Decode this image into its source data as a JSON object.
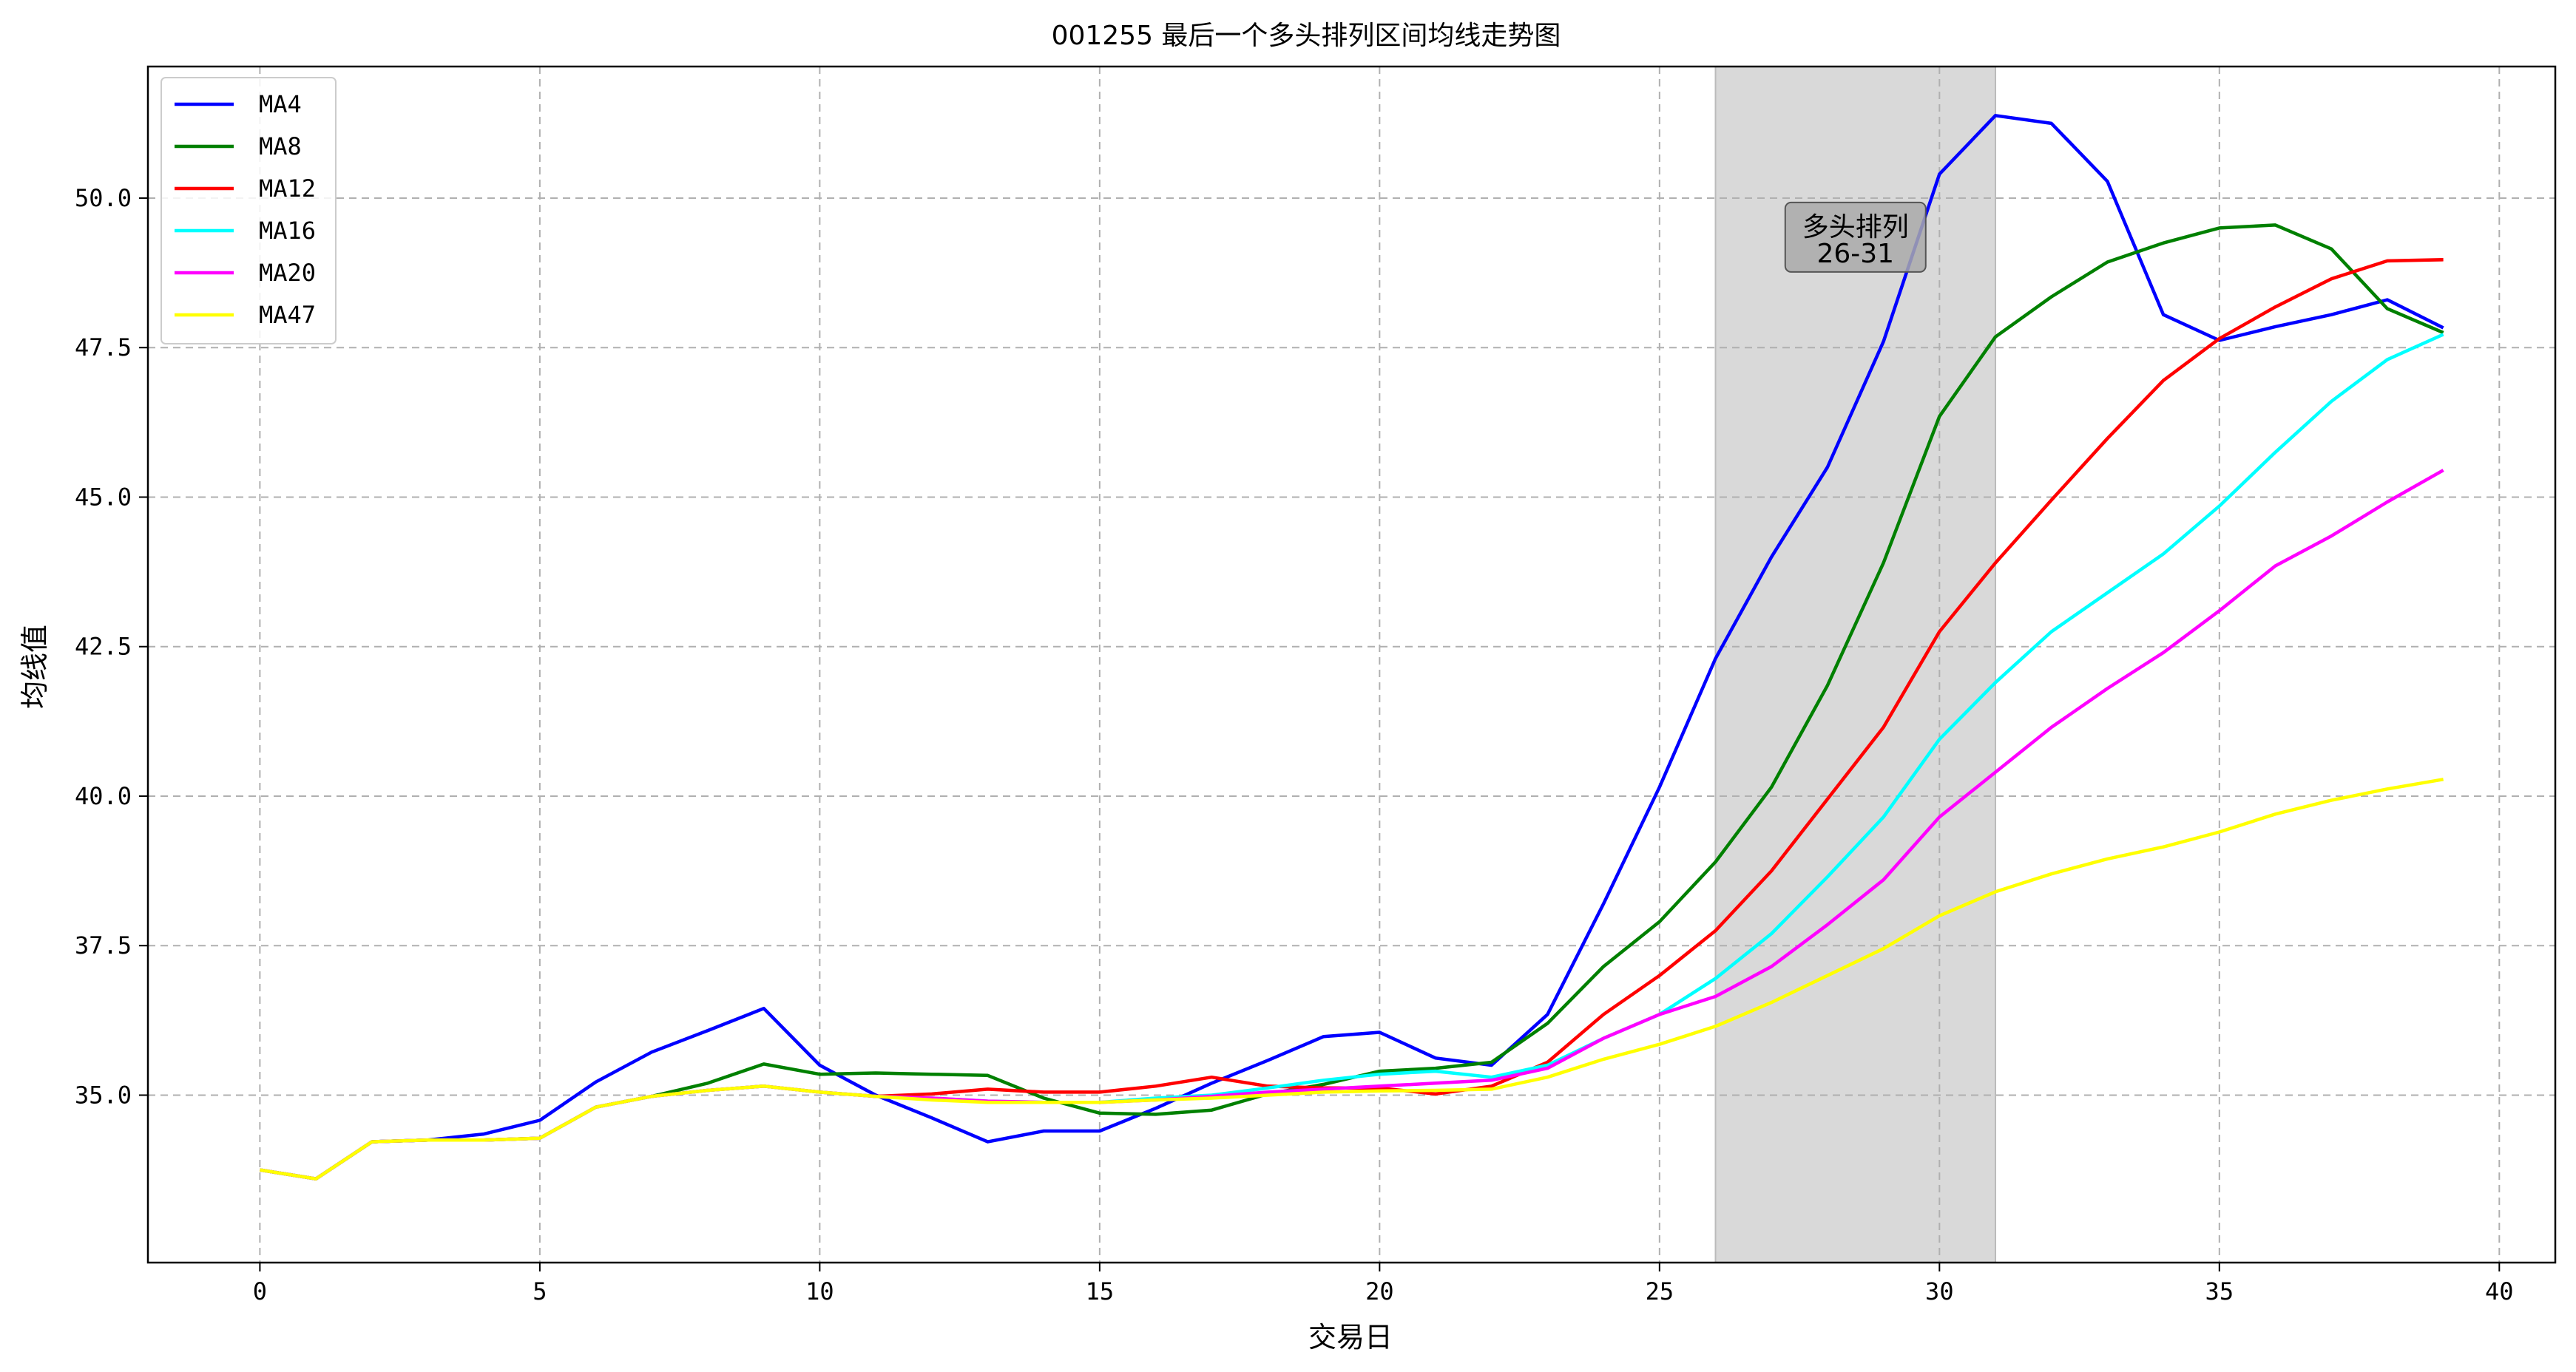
{
  "chart_data": {
    "type": "line",
    "title": "001255 最后一个多头排列区间均线走势图",
    "xlabel": "交易日",
    "ylabel": "均线值",
    "xlim": [
      -2,
      41
    ],
    "ylim": [
      32.2,
      52.2
    ],
    "xticks": [
      0,
      5,
      10,
      15,
      20,
      25,
      30,
      35,
      40
    ],
    "xtick_labels": [
      "0",
      "5",
      "10",
      "15",
      "20",
      "25",
      "30",
      "35",
      "40"
    ],
    "yticks": [
      35.0,
      37.5,
      40.0,
      42.5,
      45.0,
      47.5,
      50.0
    ],
    "ytick_labels": [
      "35.0",
      "37.5",
      "40.0",
      "42.5",
      "45.0",
      "47.5",
      "50.0"
    ],
    "grid": true,
    "legend_position": "top-left",
    "highlight_region": {
      "x_start": 26,
      "x_end": 31,
      "color": "#d9d9d9"
    },
    "annotation": {
      "line1": "多头排列",
      "line2": "26-31",
      "x": 28.5,
      "y": 49.0
    },
    "x": [
      0,
      1,
      2,
      3,
      4,
      5,
      6,
      7,
      8,
      9,
      10,
      11,
      12,
      13,
      14,
      15,
      16,
      17,
      18,
      19,
      20,
      21,
      22,
      23,
      24,
      25,
      26,
      27,
      28,
      29,
      30,
      31,
      32,
      33,
      34,
      35,
      36,
      37,
      38,
      39
    ],
    "series": [
      {
        "name": "MA4",
        "color": "#0000ff",
        "values": [
          33.75,
          33.6,
          34.22,
          34.25,
          34.35,
          34.58,
          35.22,
          35.72,
          36.08,
          36.45,
          35.5,
          35.0,
          34.62,
          34.22,
          34.4,
          34.4,
          34.78,
          35.2,
          35.58,
          35.98,
          36.05,
          35.62,
          35.5,
          36.35,
          38.2,
          40.15,
          42.3,
          44.0,
          45.5,
          47.6,
          50.4,
          51.38,
          51.25,
          50.28,
          48.05,
          47.62,
          47.85,
          48.05,
          48.3,
          47.83
        ]
      },
      {
        "name": "MA8",
        "color": "#008000",
        "values": [
          33.75,
          33.6,
          34.22,
          34.25,
          34.25,
          34.28,
          34.8,
          34.98,
          35.2,
          35.52,
          35.35,
          35.37,
          35.35,
          35.33,
          34.95,
          34.7,
          34.68,
          34.75,
          35.02,
          35.18,
          35.4,
          35.45,
          35.55,
          36.2,
          37.15,
          37.9,
          38.9,
          40.15,
          41.85,
          43.9,
          46.35,
          47.68,
          48.35,
          48.93,
          49.25,
          49.5,
          49.55,
          49.15,
          48.15,
          47.75
        ]
      },
      {
        "name": "MA12",
        "color": "#ff0000",
        "values": [
          33.75,
          33.6,
          34.22,
          34.25,
          34.25,
          34.28,
          34.8,
          34.98,
          35.08,
          35.15,
          35.05,
          34.98,
          35.02,
          35.1,
          35.05,
          35.05,
          35.15,
          35.3,
          35.15,
          35.12,
          35.12,
          35.02,
          35.15,
          35.55,
          36.35,
          37.0,
          37.75,
          38.75,
          39.95,
          41.15,
          42.75,
          43.9,
          44.95,
          45.98,
          46.95,
          47.65,
          48.18,
          48.65,
          48.95,
          48.97
        ]
      },
      {
        "name": "MA16",
        "color": "#00ffff",
        "values": [
          33.75,
          33.6,
          34.22,
          34.25,
          34.25,
          34.28,
          34.8,
          34.98,
          35.08,
          35.15,
          35.05,
          34.98,
          34.95,
          34.9,
          34.88,
          34.88,
          34.95,
          35.0,
          35.12,
          35.25,
          35.35,
          35.4,
          35.3,
          35.5,
          35.95,
          36.35,
          36.95,
          37.7,
          38.65,
          39.65,
          40.95,
          41.9,
          42.75,
          43.4,
          44.05,
          44.85,
          45.75,
          46.6,
          47.3,
          47.72
        ]
      },
      {
        "name": "MA20",
        "color": "#ff00ff",
        "values": [
          33.75,
          33.6,
          34.22,
          34.25,
          34.25,
          34.28,
          34.8,
          34.98,
          35.08,
          35.15,
          35.05,
          34.98,
          34.95,
          34.9,
          34.88,
          34.88,
          34.92,
          34.98,
          35.05,
          35.1,
          35.15,
          35.2,
          35.25,
          35.45,
          35.95,
          36.35,
          36.65,
          37.15,
          37.85,
          38.6,
          39.65,
          40.4,
          41.15,
          41.8,
          42.4,
          43.1,
          43.85,
          44.35,
          44.92,
          45.45
        ]
      },
      {
        "name": "MA47",
        "color": "#ffff00",
        "values": [
          33.75,
          33.6,
          34.22,
          34.25,
          34.25,
          34.28,
          34.8,
          34.98,
          35.08,
          35.15,
          35.05,
          34.98,
          34.92,
          34.88,
          34.88,
          34.88,
          34.92,
          34.95,
          35.0,
          35.05,
          35.07,
          35.08,
          35.1,
          35.3,
          35.6,
          35.85,
          36.15,
          36.55,
          37.0,
          37.45,
          38.0,
          38.4,
          38.7,
          38.95,
          39.15,
          39.4,
          39.7,
          39.93,
          40.12,
          40.28
        ]
      }
    ]
  }
}
